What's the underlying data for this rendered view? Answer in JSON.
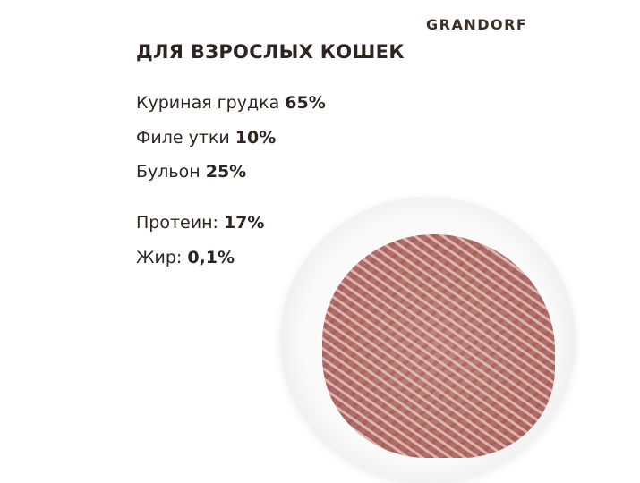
{
  "brand": "GRANDORF",
  "title": "ДЛЯ ВЗРОСЛЫХ КОШЕК",
  "ingredients": [
    {
      "label": "Куриная грудка",
      "value": "65%"
    },
    {
      "label": "Филе утки",
      "value": "10%"
    },
    {
      "label": "Бульон",
      "value": "25%"
    }
  ],
  "nutrients": [
    {
      "label": "Протеин:",
      "value": "17%"
    },
    {
      "label": "Жир:",
      "value": "0,1%"
    }
  ]
}
